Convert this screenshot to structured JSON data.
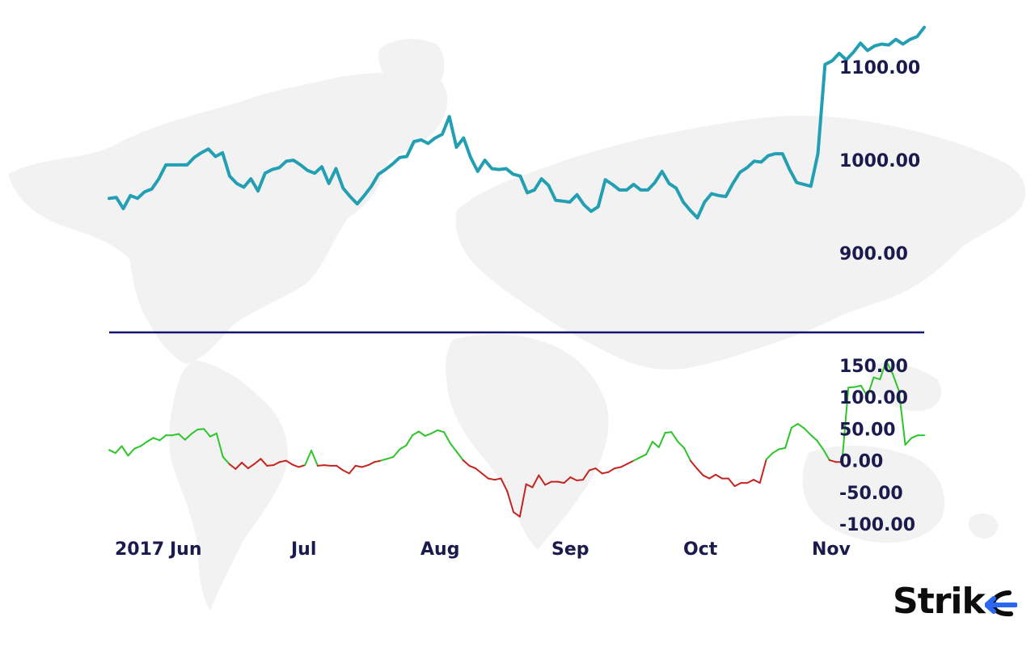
{
  "chart_data": [
    {
      "type": "line",
      "title": "",
      "xlabel": "",
      "ylabel": "",
      "ylim": [
        820,
        1155
      ],
      "y_ticks": [
        "1100.00",
        "1000.00",
        "900.00"
      ],
      "y_tick_values": [
        1100,
        1000,
        900
      ],
      "line_color": "#239fb3",
      "grid": false,
      "series": [
        {
          "values": [
            959,
            960,
            948,
            962,
            959,
            966,
            969,
            980,
            995,
            995,
            995,
            995,
            1003,
            1008,
            1012,
            1004,
            1008,
            983,
            975,
            971,
            980,
            967,
            986,
            990,
            992,
            999,
            1000,
            995,
            989,
            986,
            993,
            975,
            991,
            970,
            961,
            953,
            962,
            972,
            985,
            990,
            996,
            1003,
            1004,
            1020,
            1022,
            1018,
            1024,
            1028,
            1047,
            1014,
            1024,
            1003,
            988,
            1000,
            991,
            990,
            991,
            985,
            983,
            965,
            968,
            980,
            973,
            957,
            956,
            955,
            963,
            952,
            945,
            950,
            979,
            974,
            968,
            968,
            974,
            968,
            968,
            976,
            988,
            975,
            970,
            955,
            946,
            938,
            955,
            964,
            962,
            961,
            975,
            987,
            992,
            999,
            998,
            1005,
            1007,
            1007,
            990,
            976,
            974,
            972,
            1007,
            1103,
            1107,
            1115,
            1108,
            1116,
            1126,
            1118,
            1123,
            1125,
            1124,
            1130,
            1125,
            1130,
            1133,
            1143
          ]
        }
      ]
    },
    {
      "type": "line",
      "title": "",
      "xlabel": "",
      "ylabel": "",
      "ylim": [
        -115,
        165
      ],
      "y_ticks": [
        "150.00",
        "100.00",
        "50.00",
        "0.00",
        "-50.00",
        "-100.00"
      ],
      "y_tick_values": [
        150,
        100,
        50,
        0,
        -50,
        -100
      ],
      "colors": {
        "positive": "#2ec42b",
        "negative": "#c4241f"
      },
      "grid": false,
      "series": [
        {
          "values": [
            17,
            12,
            23,
            8,
            19,
            23,
            30,
            36,
            32,
            40,
            40,
            42,
            33,
            42,
            49,
            50,
            38,
            43,
            6,
            -5,
            -13,
            -3,
            -12,
            -5,
            3,
            -8,
            -7,
            -2,
            0,
            -6,
            -10,
            -7,
            16,
            -8,
            -7,
            -8,
            -8,
            -15,
            -20,
            -8,
            -10,
            -7,
            -2,
            0,
            3,
            6,
            18,
            24,
            40,
            46,
            39,
            43,
            48,
            45,
            27,
            14,
            1,
            -8,
            -12,
            -20,
            -28,
            -30,
            -28,
            -48,
            -81,
            -88,
            -37,
            -42,
            -23,
            -38,
            -33,
            -33,
            -35,
            -26,
            -31,
            -30,
            -15,
            -12,
            -20,
            -18,
            -12,
            -10,
            -5,
            0,
            5,
            10,
            30,
            21,
            44,
            45,
            30,
            20,
            0,
            -12,
            -23,
            -28,
            -22,
            -28,
            -28,
            -40,
            -35,
            -35,
            -30,
            -35,
            2,
            12,
            18,
            20,
            52,
            58,
            51,
            41,
            32,
            18,
            1,
            -2,
            -2,
            115,
            116,
            118,
            101,
            131,
            128,
            157,
            137,
            110,
            25,
            36,
            40,
            40
          ]
        }
      ]
    },
    {
      "type": "axis",
      "x_labels": [
        "2017",
        "Jun",
        "Jul",
        "Aug",
        "Sep",
        "Oct",
        "Nov"
      ]
    }
  ],
  "logo": {
    "text_main": "Stri",
    "text_last": "k"
  }
}
